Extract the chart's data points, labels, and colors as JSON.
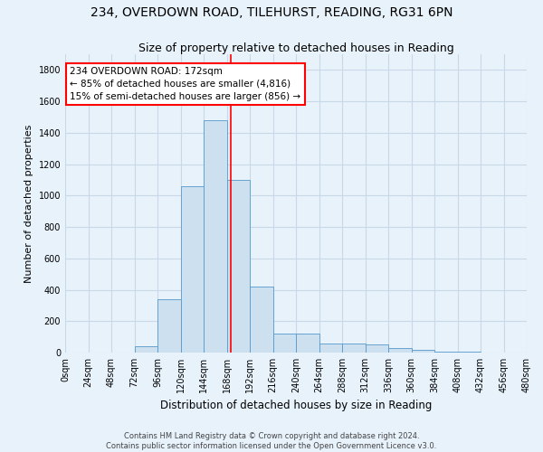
{
  "title_line1": "234, OVERDOWN ROAD, TILEHURST, READING, RG31 6PN",
  "title_line2": "Size of property relative to detached houses in Reading",
  "xlabel": "Distribution of detached houses by size in Reading",
  "ylabel": "Number of detached properties",
  "bin_edges": [
    0,
    24,
    48,
    72,
    96,
    120,
    144,
    168,
    192,
    216,
    240,
    264,
    288,
    312,
    336,
    360,
    384,
    408,
    432,
    456,
    480
  ],
  "bar_heights": [
    0,
    0,
    0,
    40,
    340,
    1060,
    1480,
    1100,
    420,
    120,
    120,
    60,
    60,
    50,
    30,
    20,
    8,
    4,
    2,
    2
  ],
  "bar_color": "#cce0f0",
  "bar_edge_color": "#5599cc",
  "property_size": 172,
  "annotation_text": "234 OVERDOWN ROAD: 172sqm\n← 85% of detached houses are smaller (4,816)\n15% of semi-detached houses are larger (856) →",
  "annotation_box_color": "white",
  "annotation_box_edge_color": "red",
  "vline_color": "red",
  "vline_x": 172,
  "ylim": [
    0,
    1900
  ],
  "yticks": [
    0,
    200,
    400,
    600,
    800,
    1000,
    1200,
    1400,
    1600,
    1800
  ],
  "footer_line1": "Contains HM Land Registry data © Crown copyright and database right 2024.",
  "footer_line2": "Contains public sector information licensed under the Open Government Licence v3.0.",
  "background_color": "#e8f2fb",
  "plot_background": "#e8f2fb",
  "grid_color": "#c8d8e8",
  "title_fontsize": 10,
  "subtitle_fontsize": 9,
  "tick_fontsize": 7,
  "ylabel_fontsize": 8,
  "xlabel_fontsize": 8.5,
  "annotation_fontsize": 7.5
}
